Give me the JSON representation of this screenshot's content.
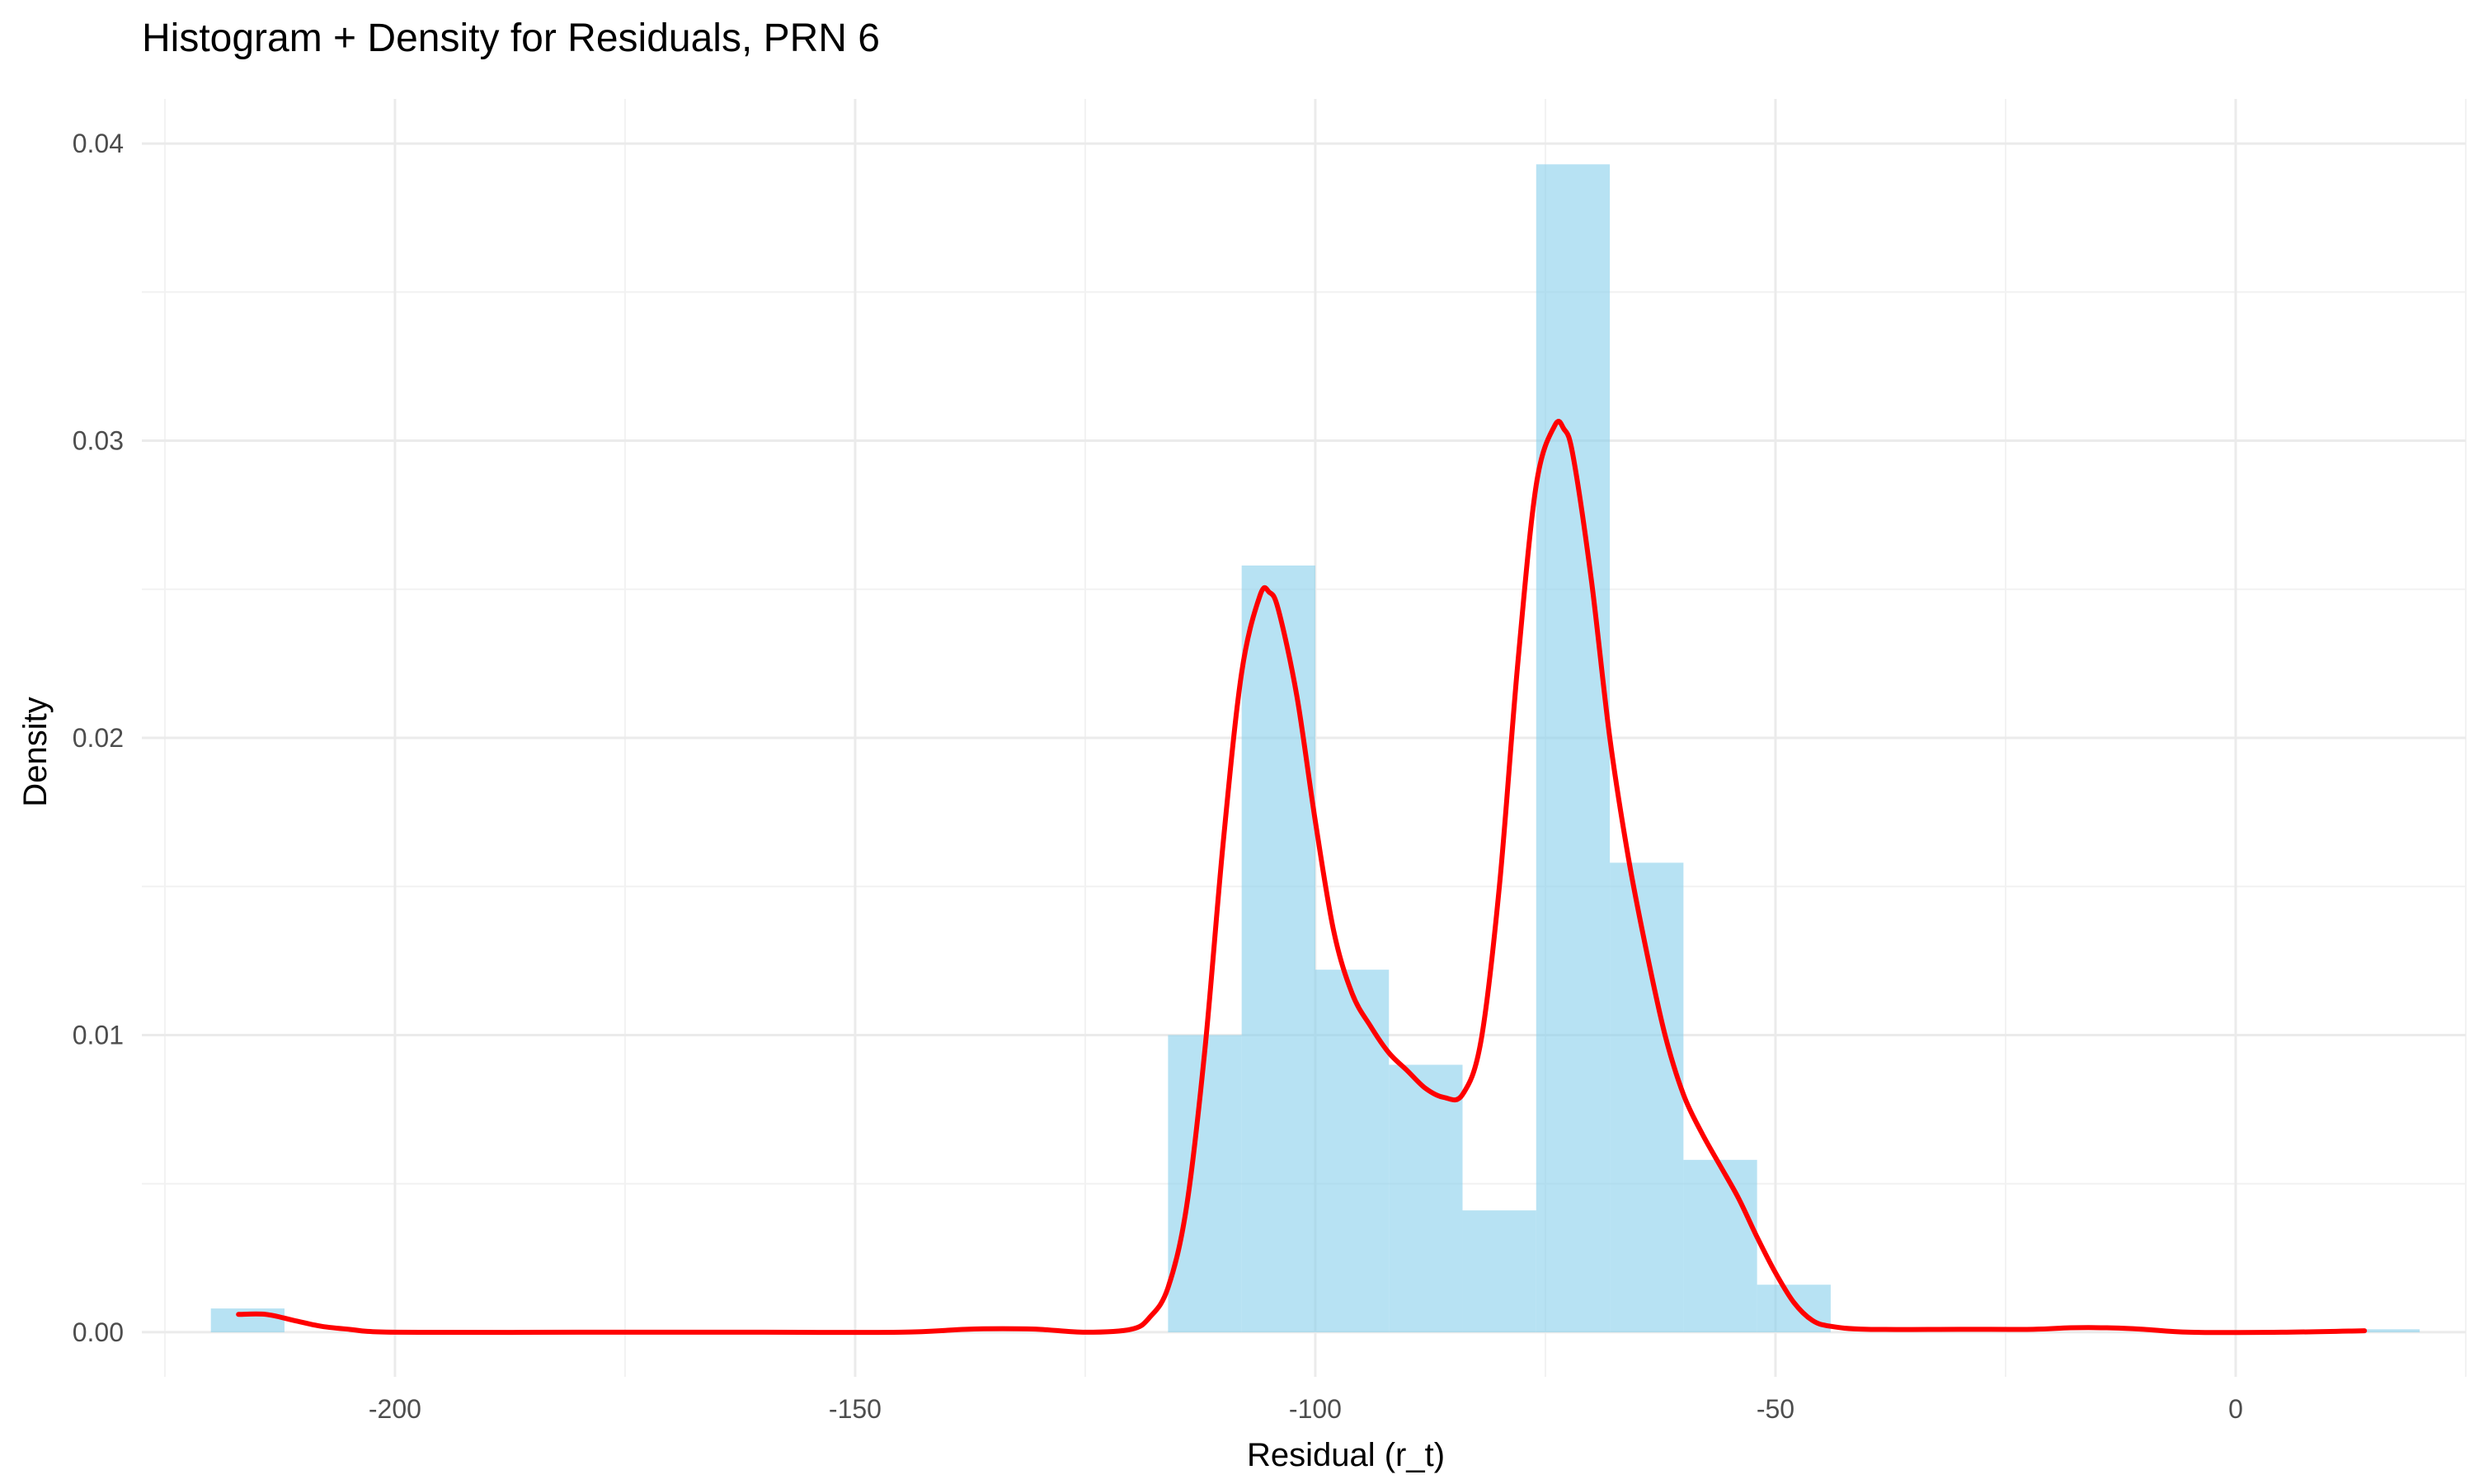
{
  "chart_data": {
    "type": "bar",
    "title": "Histogram + Density for Residuals, PRN 6",
    "xlabel": "Residual (r_t)",
    "ylabel": "Density",
    "xlim": [
      -227.5,
      25
    ],
    "ylim": [
      -0.0015,
      0.0415
    ],
    "x_ticks": [
      -200,
      -150,
      -100,
      -50,
      0
    ],
    "x_tick_labels": [
      "-200",
      "-150",
      "-100",
      "-50",
      "0"
    ],
    "y_ticks": [
      0,
      0.01,
      0.02,
      0.03,
      0.04
    ],
    "y_tick_labels": [
      "0.00",
      "0.01",
      "0.02",
      "0.03",
      "0.04"
    ],
    "grid": true,
    "histogram": {
      "name": "",
      "color": "#87CEEB",
      "opacity": 0.6,
      "bins": [
        {
          "x0": -220,
          "x1": -212,
          "density": 0.0008
        },
        {
          "x0": -116,
          "x1": -108,
          "density": 0.01
        },
        {
          "x0": -108,
          "x1": -100,
          "density": 0.0258
        },
        {
          "x0": -100,
          "x1": -92,
          "density": 0.0122
        },
        {
          "x0": -92,
          "x1": -84,
          "density": 0.009
        },
        {
          "x0": -84,
          "x1": -76,
          "density": 0.0041
        },
        {
          "x0": -76,
          "x1": -68,
          "density": 0.0393
        },
        {
          "x0": -68,
          "x1": -60,
          "density": 0.0158
        },
        {
          "x0": -60,
          "x1": -52,
          "density": 0.0058
        },
        {
          "x0": -52,
          "x1": -44,
          "density": 0.0016
        },
        {
          "x0": 12,
          "x1": 20,
          "density": 0.0001
        }
      ]
    },
    "density": {
      "name": "",
      "color": "#FF0000",
      "points": [
        [
          -217,
          0.0006
        ],
        [
          -214,
          0.0006
        ],
        [
          -211,
          0.0004
        ],
        [
          -208,
          0.0002
        ],
        [
          -205,
          0.0001
        ],
        [
          -200,
          0.0
        ],
        [
          -180,
          0.0
        ],
        [
          -160,
          0.0
        ],
        [
          -145,
          0.0
        ],
        [
          -138,
          0.0001
        ],
        [
          -134,
          0.00012
        ],
        [
          -130,
          0.0001
        ],
        [
          -125,
          0.0
        ],
        [
          -120,
          0.0001
        ],
        [
          -118,
          0.0005
        ],
        [
          -116,
          0.0015
        ],
        [
          -114,
          0.0042
        ],
        [
          -112,
          0.0095
        ],
        [
          -110,
          0.0165
        ],
        [
          -108,
          0.0222
        ],
        [
          -106,
          0.0248
        ],
        [
          -105,
          0.0249
        ],
        [
          -104,
          0.0243
        ],
        [
          -102,
          0.0214
        ],
        [
          -100,
          0.0172
        ],
        [
          -98,
          0.0135
        ],
        [
          -96,
          0.0114
        ],
        [
          -94,
          0.0103
        ],
        [
          -92,
          0.0094
        ],
        [
          -90,
          0.0088
        ],
        [
          -88,
          0.0082
        ],
        [
          -86,
          0.0079
        ],
        [
          -84,
          0.008
        ],
        [
          -82,
          0.0098
        ],
        [
          -80,
          0.015
        ],
        [
          -78,
          0.0225
        ],
        [
          -76,
          0.0285
        ],
        [
          -74,
          0.0305
        ],
        [
          -73,
          0.0304
        ],
        [
          -72,
          0.0295
        ],
        [
          -70,
          0.0253
        ],
        [
          -68,
          0.02
        ],
        [
          -66,
          0.016
        ],
        [
          -64,
          0.0128
        ],
        [
          -62,
          0.01
        ],
        [
          -60,
          0.008
        ],
        [
          -58,
          0.0067
        ],
        [
          -56,
          0.0056
        ],
        [
          -54,
          0.0045
        ],
        [
          -52,
          0.0032
        ],
        [
          -50,
          0.002
        ],
        [
          -48,
          0.001
        ],
        [
          -46,
          0.0004
        ],
        [
          -44,
          0.0002
        ],
        [
          -40,
          0.0001
        ],
        [
          -30,
          0.0001
        ],
        [
          -22,
          0.0001
        ],
        [
          -18,
          0.00015
        ],
        [
          -14,
          0.00015
        ],
        [
          -10,
          0.0001
        ],
        [
          -5,
          0.0
        ],
        [
          5,
          0.0
        ],
        [
          14,
          5e-05
        ]
      ]
    }
  }
}
